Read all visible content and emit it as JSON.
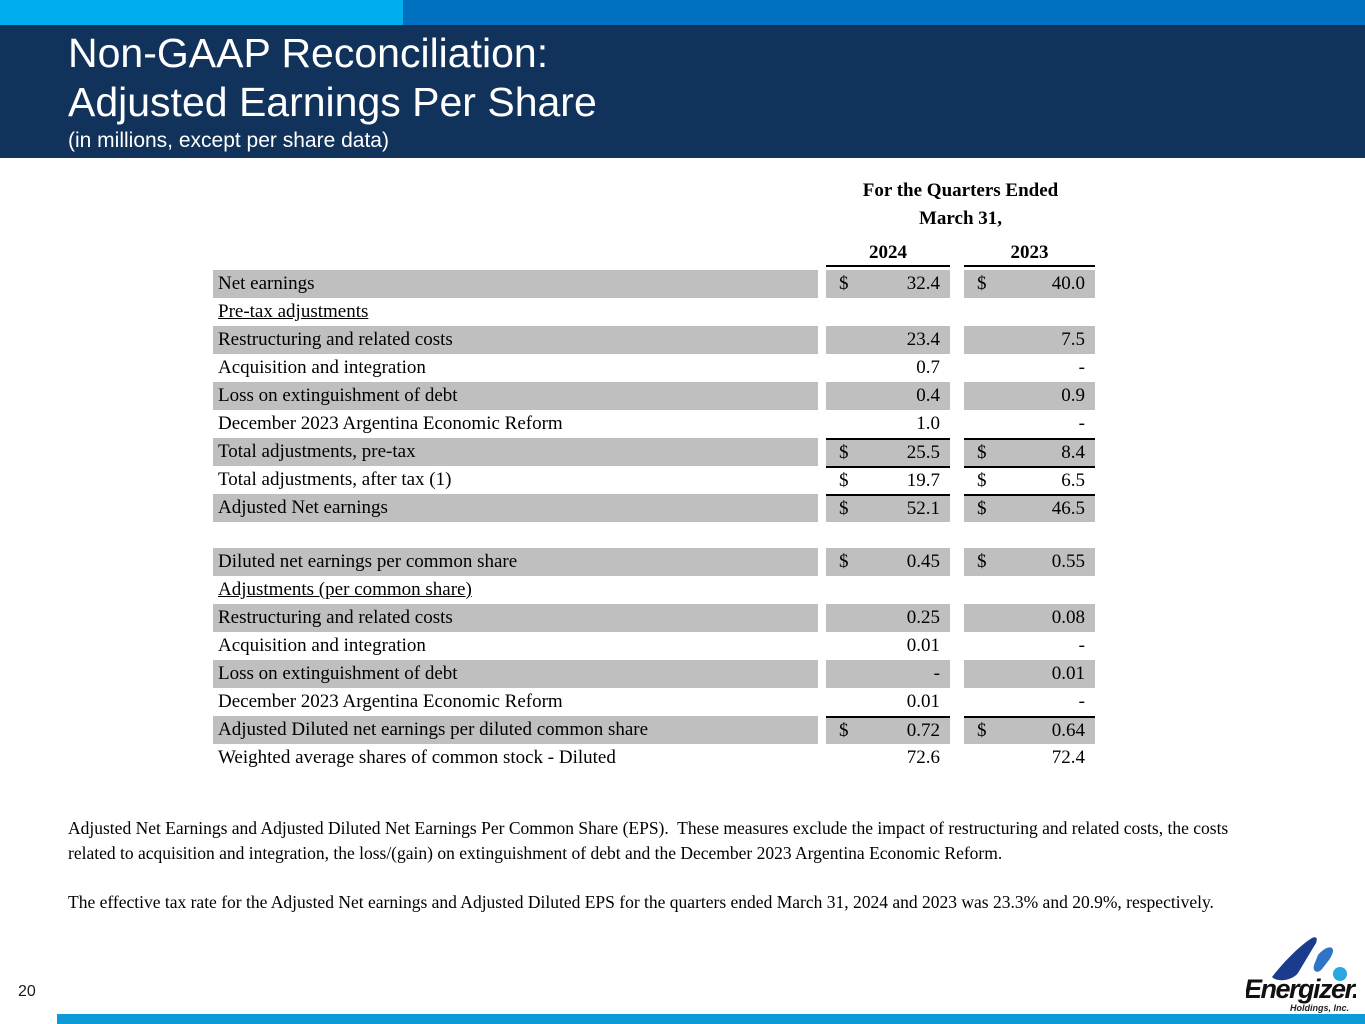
{
  "header": {
    "title_line1": "Non-GAAP Reconciliation:",
    "title_line2": "Adjusted Earnings Per Share",
    "subtitle": "(in millions, except per share data)"
  },
  "table": {
    "period_line1": "For the Quarters Ended",
    "period_line2": "March 31,",
    "year_2024": "2024",
    "year_2023": "2023",
    "rows": [
      {
        "label": "Net earnings",
        "d1": "$",
        "v1": "32.4",
        "d2": "$",
        "v2": "40.0",
        "shaded": true
      },
      {
        "label": "Pre-tax adjustments",
        "d1": "",
        "v1": "",
        "d2": "",
        "v2": "",
        "underline": true
      },
      {
        "label": "Restructuring and related costs",
        "d1": "",
        "v1": "23.4",
        "d2": "",
        "v2": "7.5",
        "shaded": true
      },
      {
        "label": "Acquisition and integration",
        "d1": "",
        "v1": "0.7",
        "d2": "",
        "v2": "-"
      },
      {
        "label": "Loss on extinguishment of debt",
        "d1": "",
        "v1": "0.4",
        "d2": "",
        "v2": "0.9",
        "shaded": true
      },
      {
        "label": "December 2023 Argentina Economic Reform",
        "d1": "",
        "v1": "1.0",
        "d2": "",
        "v2": "-"
      },
      {
        "label": "Total adjustments, pre-tax",
        "d1": "$",
        "v1": "25.5",
        "d2": "$",
        "v2": "8.4",
        "shaded": true,
        "border": true
      },
      {
        "label": "Total adjustments, after tax (1)",
        "d1": "$",
        "v1": "19.7",
        "d2": "$",
        "v2": "6.5",
        "border": true
      },
      {
        "label": "Adjusted Net earnings",
        "d1": "$",
        "v1": "52.1",
        "d2": "$",
        "v2": "46.5",
        "shaded": true,
        "border": true
      },
      {
        "spacer": true
      },
      {
        "label": "Diluted net earnings per common share",
        "d1": "$",
        "v1": "0.45",
        "d2": "$",
        "v2": "0.55",
        "shaded": true
      },
      {
        "label": "Adjustments (per common share)",
        "d1": "",
        "v1": "",
        "d2": "",
        "v2": "",
        "underline": true
      },
      {
        "label": "Restructuring and related costs",
        "d1": "",
        "v1": "0.25",
        "d2": "",
        "v2": "0.08",
        "shaded": true
      },
      {
        "label": "Acquisition and integration",
        "d1": "",
        "v1": "0.01",
        "d2": "",
        "v2": "-"
      },
      {
        "label": "Loss on extinguishment of debt",
        "d1": "",
        "v1": "-",
        "d2": "",
        "v2": "0.01",
        "shaded": true
      },
      {
        "label": "December 2023 Argentina Economic Reform",
        "d1": "",
        "v1": "0.01",
        "d2": "",
        "v2": "-"
      },
      {
        "label": "Adjusted Diluted net earnings per diluted common share",
        "d1": "$",
        "v1": "0.72",
        "d2": "$",
        "v2": "0.64",
        "shaded": true,
        "border": true
      },
      {
        "label": "Weighted average shares of common stock - Diluted",
        "d1": "",
        "v1": "72.6",
        "d2": "",
        "v2": "72.4"
      }
    ]
  },
  "notes": {
    "p1": "Adjusted Net Earnings and Adjusted Diluted Net Earnings Per Common Share (EPS).  These measures exclude the impact of restructuring and related costs, the costs related to acquisition and integration, the loss/(gain) on extinguishment of debt and the December 2023 Argentina Economic Reform.",
    "p2": "The effective tax rate for the Adjusted Net earnings and Adjusted Diluted EPS for the quarters ended March 31, 2024 and 2023 was 23.3% and 20.9%, respectively."
  },
  "footer": {
    "page_number": "20",
    "logo_name": "Energizer.",
    "logo_sub": "Holdings, Inc."
  },
  "colors": {
    "accent_cyan": "#00AEEF",
    "accent_blue": "#0070C0",
    "band_navy": "#11325A",
    "row_gray": "#BFBFBF",
    "bottom_bar": "#0C9BD8",
    "logo_dark_blue": "#1B3C8C",
    "logo_mid_blue": "#2E75C8",
    "logo_light_blue": "#29A8E0"
  }
}
